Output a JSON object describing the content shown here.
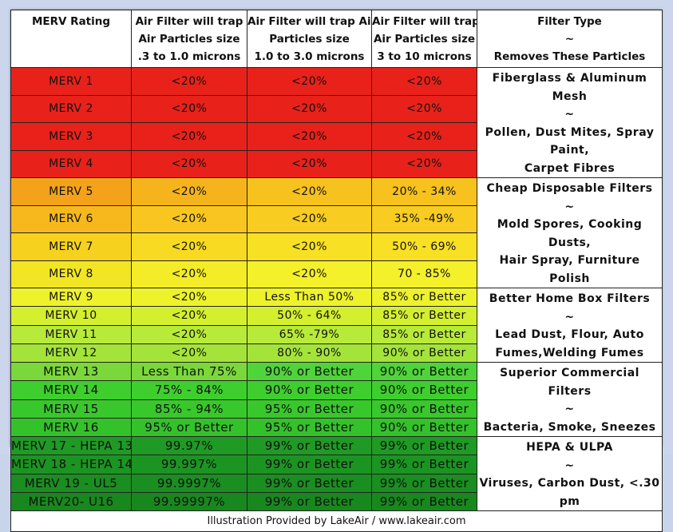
{
  "header": {
    "rating": "MERV Rating",
    "col1": [
      "Air  Filter will trap",
      "Air Particles size",
      ".3 to 1.0 microns"
    ],
    "col2": [
      "Air  Filter will trap Air",
      "Particles size",
      "1.0 to 3.0 microns"
    ],
    "col3": [
      "Air  Filter will trap",
      "Air Particles size",
      "3  to 10 microns"
    ],
    "type": [
      "Filter Type",
      "~",
      "Removes These Particles"
    ]
  },
  "rows": [
    {
      "rating": "MERV 1",
      "a": "<20%",
      "b": "<20%",
      "c": "<20%",
      "colors": [
        "#e8221a",
        "#e8221a",
        "#e8221a",
        "#e8221a"
      ]
    },
    {
      "rating": "MERV 2",
      "a": "<20%",
      "b": "<20%",
      "c": "<20%",
      "colors": [
        "#e8221a",
        "#e8221a",
        "#e8221a",
        "#e8221a"
      ]
    },
    {
      "rating": "MERV 3",
      "a": "<20%",
      "b": "<20%",
      "c": "<20%",
      "colors": [
        "#e8221a",
        "#e8221a",
        "#e8221a",
        "#e8221a"
      ]
    },
    {
      "rating": "MERV 4",
      "a": "<20%",
      "b": "<20%",
      "c": "<20%",
      "colors": [
        "#e8221a",
        "#e8221a",
        "#e8221a",
        "#e8221a"
      ]
    },
    {
      "rating": "MERV 5",
      "a": "<20%",
      "b": "<20%",
      "c": "20% - 34%",
      "colors": [
        "#f4a21a",
        "#f6b41c",
        "#f7c11e",
        "#f7c11e"
      ]
    },
    {
      "rating": "MERV 6",
      "a": "<20%",
      "b": "<20%",
      "c": "35% -49%",
      "colors": [
        "#f6b81c",
        "#f8c61e",
        "#f8cc20",
        "#f8cc20"
      ]
    },
    {
      "rating": "MERV 7",
      "a": "<20%",
      "b": "<20%",
      "c": "50% - 69%",
      "colors": [
        "#f6d21f",
        "#f8da22",
        "#f8e024",
        "#f8e024"
      ]
    },
    {
      "rating": "MERV 8",
      "a": "<20%",
      "b": "<20%",
      "c": "70 - 85%",
      "colors": [
        "#f2e624",
        "#f4ec26",
        "#f4f02a",
        "#f4f02a"
      ]
    },
    {
      "rating": "MERV 9",
      "a": "<20%",
      "b": "Less Than 50%",
      "c": "85% or Better",
      "colors": [
        "#eef22a",
        "#eef22a",
        "#eef22a",
        "#eef22a"
      ]
    },
    {
      "rating": "MERV 10",
      "a": "<20%",
      "b": "50% - 64%",
      "c": "85% or Better",
      "colors": [
        "#d4ef2e",
        "#d4ef2e",
        "#d4ef2e",
        "#d4ef2e"
      ]
    },
    {
      "rating": "MERV 11",
      "a": "<20%",
      "b": "65% -79%",
      "c": "85% or Better",
      "colors": [
        "#b8ea3a",
        "#b8ea3a",
        "#b8ea3a",
        "#b8ea3a"
      ]
    },
    {
      "rating": "MERV 12",
      "a": "<20%",
      "b": "80% - 90%",
      "c": "90% or Better",
      "colors": [
        "#a4e43a",
        "#a4e43a",
        "#a4e43a",
        "#a4e43a"
      ]
    },
    {
      "rating": "MERV 13",
      "a": "Less Than 75%",
      "b": "90% or Better",
      "c": "90% or Better",
      "colors": [
        "#7ad83a",
        "#7ad83a",
        "#4fd43a",
        "#4fd43a"
      ]
    },
    {
      "rating": "MERV 14",
      "a": "75% - 84%",
      "b": "90% or Better",
      "c": "90% or Better",
      "colors": [
        "#3ece2e",
        "#3ece2e",
        "#3ece2e",
        "#3ece2e"
      ]
    },
    {
      "rating": "MERV 15",
      "a": "85% - 94%",
      "b": "95% or Better",
      "c": "90% or Better",
      "colors": [
        "#38c82c",
        "#38c82c",
        "#38c82c",
        "#38c82c"
      ]
    },
    {
      "rating": "MERV 16",
      "a": "95%  or Better",
      "b": "95% or Better",
      "c": "90% or Better",
      "colors": [
        "#34c22a",
        "#34c22a",
        "#34c22a",
        "#34c22a"
      ]
    },
    {
      "rating": "MERV 17 - HEPA 13",
      "a": "99.97%",
      "b": "99% or Better",
      "c": "99% or Better",
      "colors": [
        "#1f9a24",
        "#1f9a24",
        "#1f9a24",
        "#1f9a24"
      ]
    },
    {
      "rating": "MERV 18 - HEPA 14",
      "a": "99.997%",
      "b": "99% or Better",
      "c": "99% or Better",
      "colors": [
        "#1c9422",
        "#1c9422",
        "#1c9422",
        "#1c9422"
      ]
    },
    {
      "rating": "MERV 19 - UL5",
      "a": "99.9997%",
      "b": "99% or Better",
      "c": "99% or Better",
      "colors": [
        "#1a8e20",
        "#1a8e20",
        "#1a8e20",
        "#1a8e20"
      ]
    },
    {
      "rating": "MERV20- U16",
      "a": "99.99997%",
      "b": "99% or Better",
      "c": "99% or Better",
      "colors": [
        "#18881e",
        "#18881e",
        "#18881e",
        "#18881e"
      ]
    }
  ],
  "types": [
    [
      "Fiberglass & Aluminum Mesh",
      "~",
      "Pollen, Dust Mites, Spray Paint,",
      "Carpet Fibres"
    ],
    [
      "Cheap Disposable Filters",
      "~",
      "Mold Spores, Cooking Dusts,",
      "Hair Spray, Furniture Polish"
    ],
    [
      "Better Home Box Filters",
      "~",
      "Lead Dust, Flour, Auto",
      "Fumes,Welding Fumes"
    ],
    [
      "Superior Commercial Filters",
      "~",
      "Bacteria, Smoke, Sneezes"
    ],
    [
      "HEPA &  ULPA",
      "~",
      "Viruses,  Carbon Dust, <.30 pm"
    ]
  ],
  "footer": "Illustration Provided by LakeAir / www.lakeair.com"
}
